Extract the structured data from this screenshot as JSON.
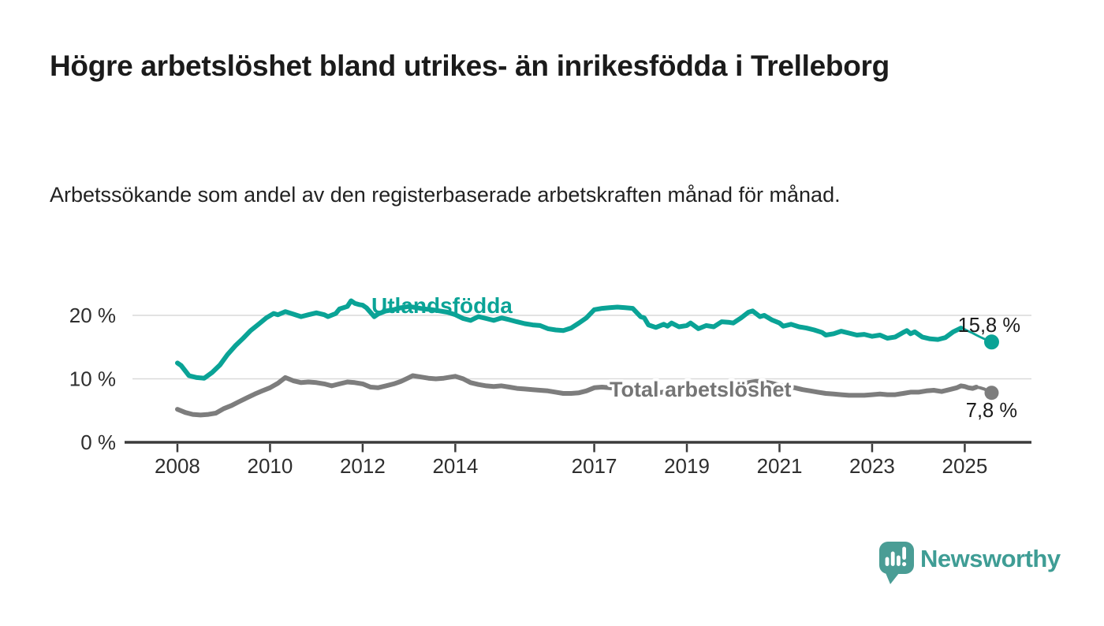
{
  "header": {
    "title": "Högre arbetslöshet bland utrikes- än inrikesfödda i Trelleborg",
    "subtitle": "Arbetssökande som andel av den registerbaserade arbetskraften månad för månad."
  },
  "footer": {
    "brand": "Newsworthy",
    "brand_color": "#3f9d95",
    "logo_icon": "speech-bubble-bar-chart-exclamation"
  },
  "colors": {
    "accent_teal": "#0aa396",
    "series_gray": "#7d7d7d",
    "axis": "#3b3b3b",
    "grid": "#d9d9d9",
    "tick_text": "#2e2e2e",
    "value_text": "#1b1b1b"
  },
  "chart_data": {
    "type": "line",
    "title": "Högre arbetslöshet bland utrikes- än inrikesfödda i Trelleborg",
    "subtitle": "Arbetssökande som andel av den registerbaserade arbetskraften månad för månad.",
    "grid": "horizontal",
    "legend_position": "inline-labels",
    "x_axis": {
      "range": [
        2007.03,
        2026.44
      ],
      "tick_years": [
        2008,
        2010,
        2012,
        2014,
        2017,
        2019,
        2021,
        2023,
        2025
      ],
      "tick_labels": [
        "2008",
        "2010",
        "2012",
        "2014",
        "2017",
        "2019",
        "2021",
        "2023",
        "2025"
      ]
    },
    "y_axis": {
      "unit": "%",
      "range": [
        0,
        26
      ],
      "tick_values": [
        0,
        10,
        20
      ],
      "tick_labels": [
        "0 %",
        "10 %",
        "20 %"
      ]
    },
    "series": [
      {
        "name": "Total arbetslöshet",
        "color": "#7d7d7d",
        "end_value": 7.8,
        "end_label": "7,8 %",
        "points": [
          [
            2008.0,
            5.2
          ],
          [
            2008.17,
            4.7
          ],
          [
            2008.33,
            4.4
          ],
          [
            2008.5,
            4.3
          ],
          [
            2008.67,
            4.4
          ],
          [
            2008.83,
            4.6
          ],
          [
            2009.0,
            5.3
          ],
          [
            2009.17,
            5.8
          ],
          [
            2009.33,
            6.4
          ],
          [
            2009.5,
            7.0
          ],
          [
            2009.67,
            7.6
          ],
          [
            2009.83,
            8.1
          ],
          [
            2010.0,
            8.6
          ],
          [
            2010.17,
            9.3
          ],
          [
            2010.33,
            10.2
          ],
          [
            2010.5,
            9.7
          ],
          [
            2010.67,
            9.4
          ],
          [
            2010.83,
            9.5
          ],
          [
            2011.0,
            9.4
          ],
          [
            2011.17,
            9.2
          ],
          [
            2011.33,
            8.9
          ],
          [
            2011.5,
            9.2
          ],
          [
            2011.67,
            9.5
          ],
          [
            2011.83,
            9.4
          ],
          [
            2012.0,
            9.2
          ],
          [
            2012.17,
            8.7
          ],
          [
            2012.33,
            8.6
          ],
          [
            2012.5,
            8.9
          ],
          [
            2012.67,
            9.2
          ],
          [
            2012.83,
            9.6
          ],
          [
            2013.0,
            10.2
          ],
          [
            2013.08,
            10.5
          ],
          [
            2013.25,
            10.3
          ],
          [
            2013.42,
            10.1
          ],
          [
            2013.58,
            10.0
          ],
          [
            2013.75,
            10.1
          ],
          [
            2013.92,
            10.3
          ],
          [
            2014.0,
            10.4
          ],
          [
            2014.17,
            10.0
          ],
          [
            2014.33,
            9.4
          ],
          [
            2014.5,
            9.1
          ],
          [
            2014.67,
            8.9
          ],
          [
            2014.83,
            8.8
          ],
          [
            2015.0,
            8.9
          ],
          [
            2015.17,
            8.7
          ],
          [
            2015.33,
            8.5
          ],
          [
            2015.5,
            8.4
          ],
          [
            2015.67,
            8.3
          ],
          [
            2015.83,
            8.2
          ],
          [
            2016.0,
            8.1
          ],
          [
            2016.17,
            7.9
          ],
          [
            2016.33,
            7.7
          ],
          [
            2016.5,
            7.7
          ],
          [
            2016.67,
            7.8
          ],
          [
            2016.83,
            8.1
          ],
          [
            2017.0,
            8.6
          ],
          [
            2017.17,
            8.7
          ],
          [
            2017.33,
            8.6
          ],
          [
            2017.5,
            8.5
          ],
          [
            2017.67,
            8.4
          ],
          [
            2017.83,
            8.2
          ],
          [
            2018.0,
            8.0
          ],
          [
            2018.17,
            7.9
          ],
          [
            2018.33,
            7.8
          ],
          [
            2018.5,
            7.9
          ],
          [
            2018.67,
            7.9
          ],
          [
            2018.83,
            7.8
          ],
          [
            2019.0,
            7.9
          ],
          [
            2019.17,
            7.8
          ],
          [
            2019.33,
            7.9
          ],
          [
            2019.5,
            8.0
          ],
          [
            2019.67,
            8.1
          ],
          [
            2019.83,
            8.2
          ],
          [
            2020.0,
            8.4
          ],
          [
            2020.17,
            8.9
          ],
          [
            2020.33,
            9.4
          ],
          [
            2020.5,
            9.6
          ],
          [
            2020.67,
            9.5
          ],
          [
            2020.83,
            9.3
          ],
          [
            2021.0,
            9.0
          ],
          [
            2021.17,
            8.8
          ],
          [
            2021.33,
            8.6
          ],
          [
            2021.5,
            8.3
          ],
          [
            2021.67,
            8.1
          ],
          [
            2021.83,
            7.9
          ],
          [
            2022.0,
            7.7
          ],
          [
            2022.17,
            7.6
          ],
          [
            2022.33,
            7.5
          ],
          [
            2022.5,
            7.4
          ],
          [
            2022.67,
            7.4
          ],
          [
            2022.83,
            7.4
          ],
          [
            2023.0,
            7.5
          ],
          [
            2023.17,
            7.6
          ],
          [
            2023.33,
            7.5
          ],
          [
            2023.5,
            7.5
          ],
          [
            2023.67,
            7.7
          ],
          [
            2023.83,
            7.9
          ],
          [
            2024.0,
            7.9
          ],
          [
            2024.17,
            8.1
          ],
          [
            2024.33,
            8.2
          ],
          [
            2024.5,
            8.0
          ],
          [
            2024.67,
            8.3
          ],
          [
            2024.83,
            8.6
          ],
          [
            2024.92,
            8.9
          ],
          [
            2025.0,
            8.8
          ],
          [
            2025.08,
            8.6
          ],
          [
            2025.17,
            8.5
          ],
          [
            2025.25,
            8.7
          ],
          [
            2025.33,
            8.6
          ],
          [
            2025.42,
            8.4
          ],
          [
            2025.5,
            8.1
          ],
          [
            2025.58,
            7.8
          ]
        ]
      },
      {
        "name": "Utlandsfödda",
        "color": "#0aa396",
        "end_value": 15.8,
        "end_label": "15,8 %",
        "points": [
          [
            2008.0,
            12.5
          ],
          [
            2008.08,
            12.1
          ],
          [
            2008.25,
            10.5
          ],
          [
            2008.42,
            10.2
          ],
          [
            2008.58,
            10.1
          ],
          [
            2008.75,
            11.0
          ],
          [
            2008.92,
            12.2
          ],
          [
            2009.08,
            13.8
          ],
          [
            2009.25,
            15.2
          ],
          [
            2009.42,
            16.4
          ],
          [
            2009.58,
            17.6
          ],
          [
            2009.75,
            18.6
          ],
          [
            2009.92,
            19.6
          ],
          [
            2010.08,
            20.3
          ],
          [
            2010.17,
            20.1
          ],
          [
            2010.33,
            20.6
          ],
          [
            2010.5,
            20.2
          ],
          [
            2010.67,
            19.8
          ],
          [
            2010.83,
            20.1
          ],
          [
            2011.0,
            20.4
          ],
          [
            2011.17,
            20.1
          ],
          [
            2011.25,
            19.8
          ],
          [
            2011.42,
            20.3
          ],
          [
            2011.5,
            21.0
          ],
          [
            2011.67,
            21.4
          ],
          [
            2011.75,
            22.3
          ],
          [
            2011.83,
            21.9
          ],
          [
            2011.92,
            21.7
          ],
          [
            2012.0,
            21.6
          ],
          [
            2012.08,
            21.2
          ],
          [
            2012.25,
            19.8
          ],
          [
            2012.33,
            20.2
          ],
          [
            2012.5,
            20.7
          ],
          [
            2012.67,
            20.9
          ],
          [
            2012.83,
            21.2
          ],
          [
            2013.0,
            21.4
          ],
          [
            2013.17,
            21.2
          ],
          [
            2013.33,
            21.0
          ],
          [
            2013.5,
            20.9
          ],
          [
            2013.67,
            20.7
          ],
          [
            2013.83,
            20.5
          ],
          [
            2014.0,
            20.1
          ],
          [
            2014.17,
            19.5
          ],
          [
            2014.33,
            19.2
          ],
          [
            2014.5,
            19.8
          ],
          [
            2014.67,
            19.5
          ],
          [
            2014.83,
            19.2
          ],
          [
            2015.0,
            19.6
          ],
          [
            2015.17,
            19.3
          ],
          [
            2015.33,
            19.0
          ],
          [
            2015.5,
            18.7
          ],
          [
            2015.67,
            18.5
          ],
          [
            2015.83,
            18.4
          ],
          [
            2016.0,
            17.9
          ],
          [
            2016.17,
            17.7
          ],
          [
            2016.33,
            17.6
          ],
          [
            2016.5,
            18.0
          ],
          [
            2016.67,
            18.8
          ],
          [
            2016.83,
            19.6
          ],
          [
            2017.0,
            20.9
          ],
          [
            2017.17,
            21.1
          ],
          [
            2017.33,
            21.2
          ],
          [
            2017.5,
            21.3
          ],
          [
            2017.67,
            21.2
          ],
          [
            2017.83,
            21.1
          ],
          [
            2018.0,
            19.8
          ],
          [
            2018.08,
            19.6
          ],
          [
            2018.17,
            18.5
          ],
          [
            2018.33,
            18.1
          ],
          [
            2018.5,
            18.6
          ],
          [
            2018.58,
            18.3
          ],
          [
            2018.67,
            18.8
          ],
          [
            2018.83,
            18.2
          ],
          [
            2019.0,
            18.4
          ],
          [
            2019.08,
            18.8
          ],
          [
            2019.25,
            17.9
          ],
          [
            2019.42,
            18.4
          ],
          [
            2019.58,
            18.2
          ],
          [
            2019.75,
            19.0
          ],
          [
            2019.92,
            18.9
          ],
          [
            2020.0,
            18.8
          ],
          [
            2020.17,
            19.6
          ],
          [
            2020.33,
            20.5
          ],
          [
            2020.42,
            20.7
          ],
          [
            2020.58,
            19.8
          ],
          [
            2020.67,
            20.0
          ],
          [
            2020.83,
            19.3
          ],
          [
            2021.0,
            18.8
          ],
          [
            2021.08,
            18.3
          ],
          [
            2021.25,
            18.6
          ],
          [
            2021.42,
            18.2
          ],
          [
            2021.58,
            18.0
          ],
          [
            2021.75,
            17.7
          ],
          [
            2021.92,
            17.3
          ],
          [
            2022.0,
            16.9
          ],
          [
            2022.17,
            17.1
          ],
          [
            2022.33,
            17.5
          ],
          [
            2022.5,
            17.2
          ],
          [
            2022.67,
            16.9
          ],
          [
            2022.83,
            17.0
          ],
          [
            2023.0,
            16.7
          ],
          [
            2023.17,
            16.9
          ],
          [
            2023.33,
            16.4
          ],
          [
            2023.5,
            16.6
          ],
          [
            2023.67,
            17.3
          ],
          [
            2023.75,
            17.6
          ],
          [
            2023.83,
            17.1
          ],
          [
            2023.92,
            17.4
          ],
          [
            2024.08,
            16.6
          ],
          [
            2024.25,
            16.3
          ],
          [
            2024.42,
            16.2
          ],
          [
            2024.58,
            16.5
          ],
          [
            2024.75,
            17.4
          ],
          [
            2024.92,
            18.0
          ],
          [
            2025.0,
            17.8
          ],
          [
            2025.08,
            17.5
          ],
          [
            2025.17,
            17.2
          ],
          [
            2025.25,
            16.9
          ],
          [
            2025.33,
            16.6
          ],
          [
            2025.42,
            16.3
          ],
          [
            2025.5,
            16.0
          ],
          [
            2025.58,
            15.8
          ]
        ]
      }
    ]
  }
}
